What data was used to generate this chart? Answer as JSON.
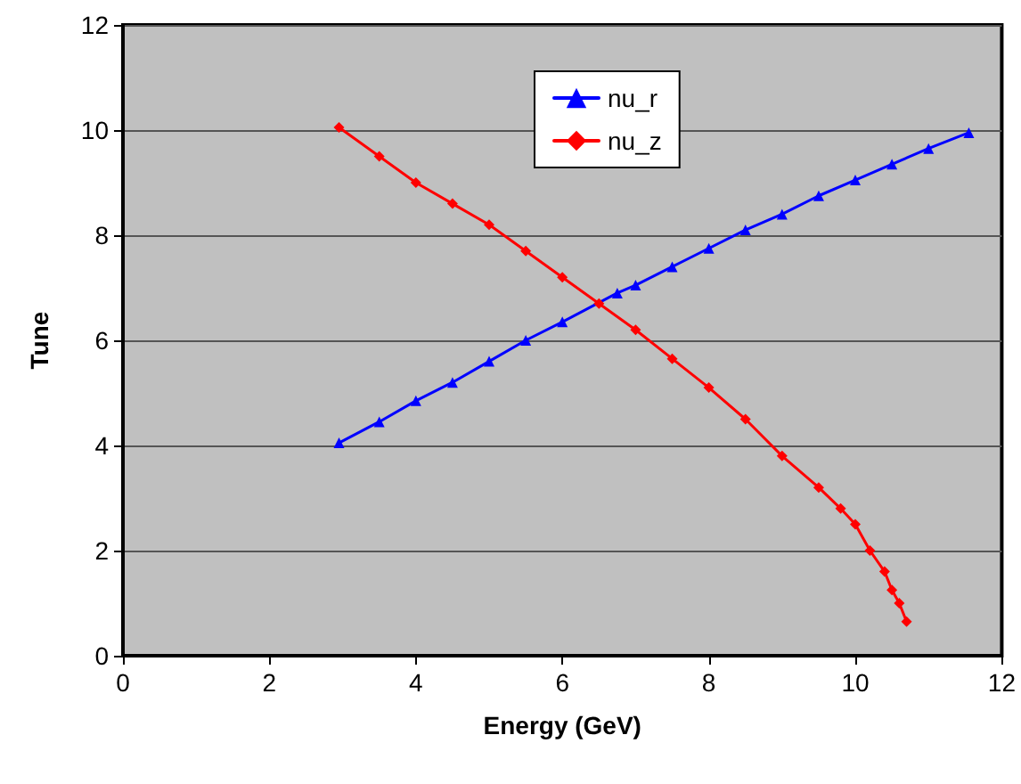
{
  "chart_data": {
    "type": "line",
    "xlabel": "Energy (GeV)",
    "ylabel": "Tune",
    "xlim": [
      0,
      12
    ],
    "xticks": [
      0,
      2,
      4,
      6,
      8,
      10,
      12
    ],
    "ylim": [
      0,
      12
    ],
    "yticks": [
      0,
      2,
      4,
      6,
      8,
      10,
      12
    ],
    "grid": "y",
    "legend": "top",
    "line_style": "solid",
    "series": [
      {
        "name": "nu_r",
        "color": "#0000ff",
        "marker": "triangle",
        "x": [
          2.95,
          3.5,
          4,
          4.5,
          5,
          5.5,
          6,
          6.75,
          7,
          7.5,
          8,
          8.5,
          9,
          9.5,
          10,
          10.5,
          11,
          11.55
        ],
        "values": [
          4.05,
          4.45,
          4.85,
          5.2,
          5.6,
          6.0,
          6.35,
          6.9,
          7.05,
          7.4,
          7.75,
          8.1,
          8.4,
          8.75,
          9.05,
          9.35,
          9.65,
          9.95
        ]
      },
      {
        "name": "nu_z",
        "color": "#ff0000",
        "marker": "diamond",
        "x": [
          2.95,
          3.5,
          4,
          4.5,
          5,
          5.5,
          6,
          6.5,
          7,
          7.5,
          8,
          8.5,
          9,
          9.5,
          9.8,
          10,
          10.2,
          10.4,
          10.5,
          10.6,
          10.7
        ],
        "values": [
          10.05,
          9.5,
          9.0,
          8.6,
          8.2,
          7.7,
          7.2,
          6.7,
          6.2,
          5.65,
          5.1,
          4.5,
          3.8,
          3.2,
          2.8,
          2.5,
          2.0,
          1.6,
          1.25,
          1.0,
          0.65
        ]
      }
    ]
  }
}
